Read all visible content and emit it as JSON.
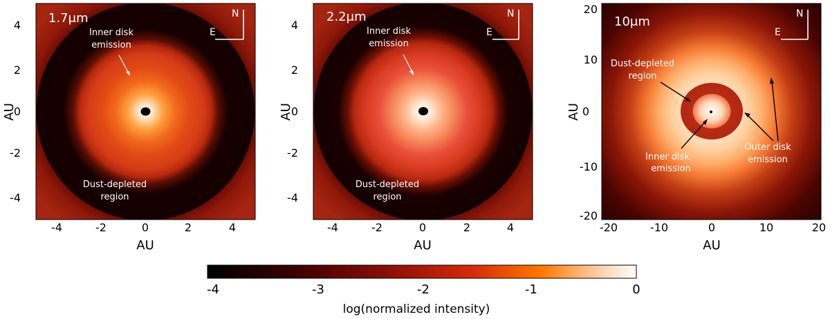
{
  "panels": [
    {
      "id": "p17",
      "wavelength_label": "1.7μm",
      "x_range": [
        -5,
        5
      ],
      "y_range": [
        -5,
        5
      ],
      "x_ticks": [
        "-4",
        "-2",
        "0",
        "2",
        "4"
      ],
      "y_ticks": [
        "4",
        "2",
        "0",
        "-2",
        "-4"
      ],
      "xlabel": "AU",
      "ylabel": "AU",
      "compass": {
        "north": "N",
        "east": "E"
      },
      "annotations": [
        {
          "lines": [
            "Inner disk",
            "emission"
          ]
        },
        {
          "lines": [
            "Dust-depleted",
            "region"
          ]
        }
      ]
    },
    {
      "id": "p22",
      "wavelength_label": "2.2μm",
      "x_range": [
        -5,
        5
      ],
      "y_range": [
        -5,
        5
      ],
      "x_ticks": [
        "-4",
        "-2",
        "0",
        "2",
        "4"
      ],
      "y_ticks": [
        "4",
        "2",
        "0",
        "-2",
        "-4"
      ],
      "xlabel": "AU",
      "ylabel": "AU",
      "compass": {
        "north": "N",
        "east": "E"
      },
      "annotations": [
        {
          "lines": [
            "Inner disk",
            "emission"
          ]
        },
        {
          "lines": [
            "Dust-depleted",
            "region"
          ]
        }
      ]
    },
    {
      "id": "p10",
      "wavelength_label": "10μm",
      "x_range": [
        -20,
        20
      ],
      "y_range": [
        -20,
        20
      ],
      "x_ticks": [
        "-20",
        "-10",
        "0",
        "10",
        "20"
      ],
      "y_ticks": [
        "20",
        "10",
        "0",
        "-10",
        "-20"
      ],
      "xlabel": "AU",
      "ylabel": "AU",
      "compass": {
        "north": "N",
        "east": "E"
      },
      "annotations": [
        {
          "lines": [
            "Dust-depleted",
            "region"
          ]
        },
        {
          "lines": [
            "Inner disk",
            "emission"
          ]
        },
        {
          "lines": [
            "Outer disk",
            "emission"
          ]
        }
      ]
    }
  ],
  "colorbar": {
    "ticks": [
      "-4",
      "-3",
      "-2",
      "-1",
      "0"
    ],
    "range": [
      -4,
      0
    ],
    "label": "log(normalized intensity)",
    "colors": [
      "#000000",
      "#3a0000",
      "#8b0d06",
      "#d92a0a",
      "#ff7a00",
      "#ffc79a",
      "#ffffff"
    ]
  }
}
